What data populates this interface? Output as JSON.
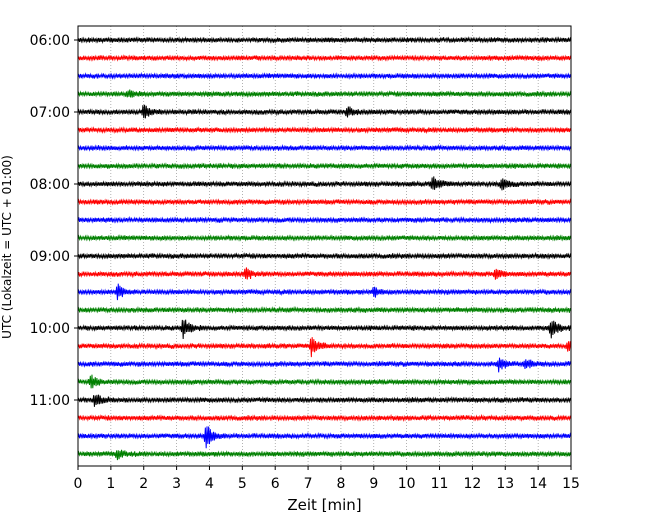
{
  "chart_data": {
    "type": "line",
    "title": "",
    "xlabel": "Zeit  [min]",
    "ylabel": "UTC (Lokalzeit = UTC + 01:00)",
    "xlim": [
      0,
      15
    ],
    "x_ticks": [
      "0",
      "1",
      "2",
      "3",
      "4",
      "5",
      "6",
      "7",
      "8",
      "9",
      "10",
      "11",
      "12",
      "13",
      "14",
      "15"
    ],
    "y_ticks": [
      "06:00",
      "07:00",
      "08:00",
      "09:00",
      "10:00",
      "11:00"
    ],
    "grid": "vertical dotted",
    "color_cycle": [
      "#000000",
      "#ff0000",
      "#0000ff",
      "#008000"
    ],
    "traces": [
      {
        "start": "06:00",
        "color": "#000000",
        "events": []
      },
      {
        "start": "06:15",
        "color": "#ff0000",
        "events": []
      },
      {
        "start": "06:30",
        "color": "#0000ff",
        "events": []
      },
      {
        "start": "06:45",
        "color": "#008000",
        "events": [
          {
            "t": 1.5,
            "amp": 0.4
          }
        ]
      },
      {
        "start": "07:00",
        "color": "#000000",
        "events": [
          {
            "t": 2.0,
            "amp": 0.8
          },
          {
            "t": 8.2,
            "amp": 0.5
          }
        ]
      },
      {
        "start": "07:15",
        "color": "#ff0000",
        "events": []
      },
      {
        "start": "07:30",
        "color": "#0000ff",
        "events": []
      },
      {
        "start": "07:45",
        "color": "#008000",
        "events": []
      },
      {
        "start": "08:00",
        "color": "#000000",
        "events": [
          {
            "t": 10.8,
            "amp": 0.8
          },
          {
            "t": 12.9,
            "amp": 0.7
          }
        ]
      },
      {
        "start": "08:15",
        "color": "#ff0000",
        "events": []
      },
      {
        "start": "08:30",
        "color": "#0000ff",
        "events": []
      },
      {
        "start": "08:45",
        "color": "#008000",
        "events": []
      },
      {
        "start": "09:00",
        "color": "#000000",
        "events": []
      },
      {
        "start": "09:15",
        "color": "#ff0000",
        "events": [
          {
            "t": 5.1,
            "amp": 0.6
          },
          {
            "t": 12.7,
            "amp": 0.5
          }
        ]
      },
      {
        "start": "09:30",
        "color": "#0000ff",
        "events": [
          {
            "t": 1.2,
            "amp": 0.8
          },
          {
            "t": 9.0,
            "amp": 0.5
          }
        ]
      },
      {
        "start": "09:45",
        "color": "#008000",
        "events": []
      },
      {
        "start": "10:00",
        "color": "#000000",
        "events": [
          {
            "t": 3.2,
            "amp": 1.0
          },
          {
            "t": 14.4,
            "amp": 1.1
          }
        ]
      },
      {
        "start": "10:15",
        "color": "#ff0000",
        "events": [
          {
            "t": 7.1,
            "amp": 1.1
          },
          {
            "t": 14.9,
            "amp": 0.6
          }
        ]
      },
      {
        "start": "10:30",
        "color": "#0000ff",
        "events": [
          {
            "t": 12.8,
            "amp": 0.7
          },
          {
            "t": 13.6,
            "amp": 0.6
          }
        ]
      },
      {
        "start": "10:45",
        "color": "#008000",
        "events": [
          {
            "t": 0.4,
            "amp": 0.7
          }
        ]
      },
      {
        "start": "11:00",
        "color": "#000000",
        "events": [
          {
            "t": 0.5,
            "amp": 0.8
          }
        ]
      },
      {
        "start": "11:15",
        "color": "#ff0000",
        "events": []
      },
      {
        "start": "11:30",
        "color": "#0000ff",
        "events": [
          {
            "t": 3.9,
            "amp": 1.3
          }
        ]
      },
      {
        "start": "11:45",
        "color": "#008000",
        "events": [
          {
            "t": 1.2,
            "amp": 0.5
          }
        ]
      }
    ]
  }
}
